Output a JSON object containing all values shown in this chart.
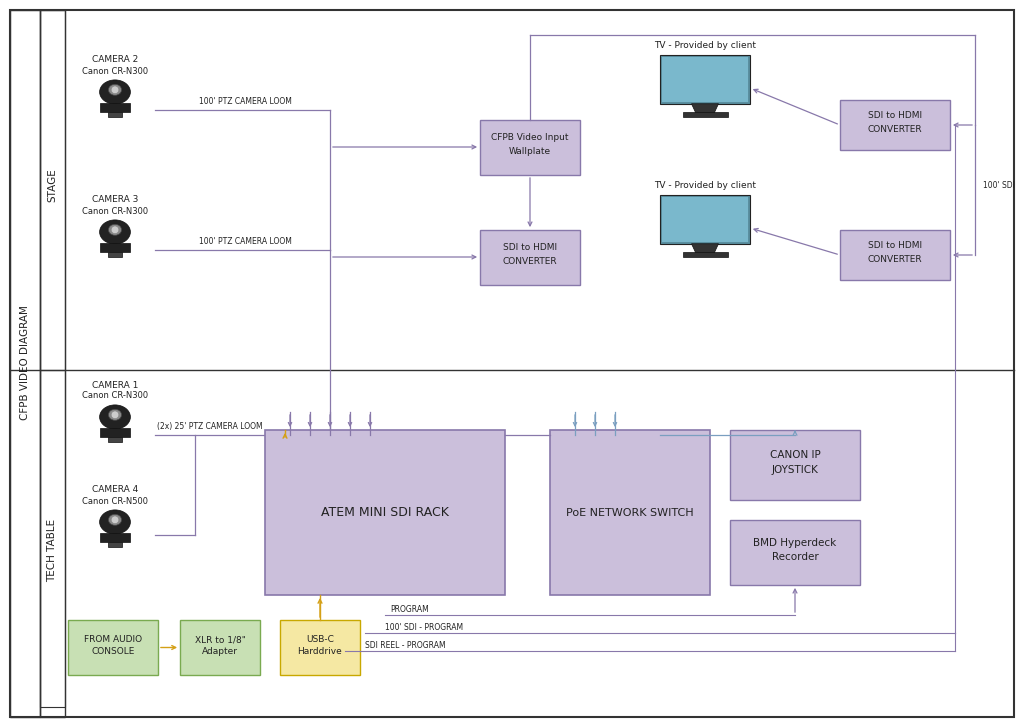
{
  "bg_color": "#ffffff",
  "border_color": "#333333",
  "box_fill_purple": "#cbbfdb",
  "box_fill_green": "#c8e0b4",
  "box_fill_yellow": "#f5e8a3",
  "box_fill_tv": "#5a8fa0",
  "arrow_purple": "#8878aa",
  "arrow_orange": "#d4a017",
  "arrow_blue": "#7a9fc0",
  "text_color": "#222222",
  "label_color": "#444444",
  "stage_label": "STAGE",
  "tech_label": "TECH TABLE",
  "diagram_label": "CFPB VIDEO DIAGRAM",
  "title": "CFPB VIDEO DIAGRAM"
}
